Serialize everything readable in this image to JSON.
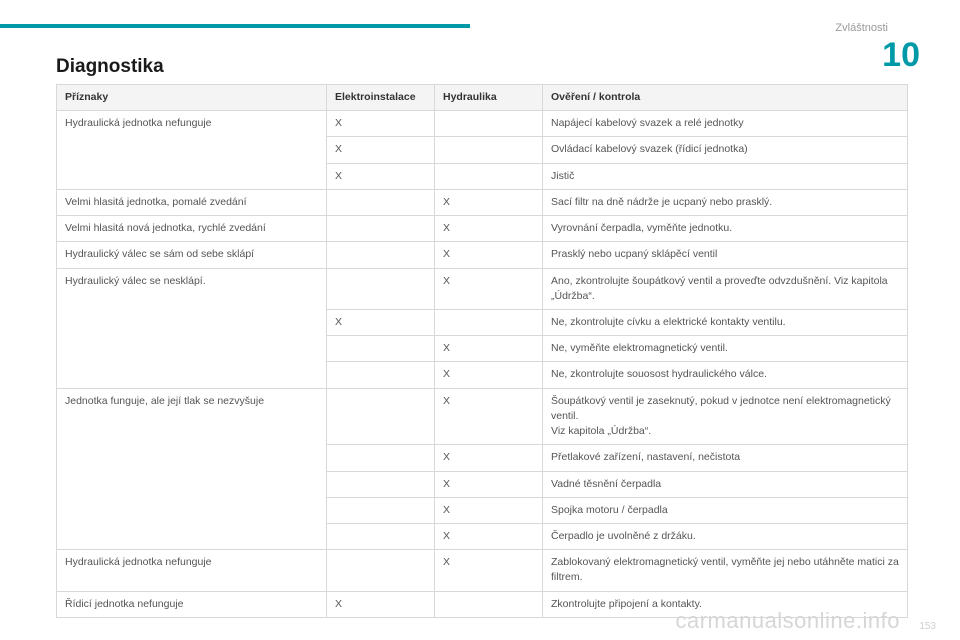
{
  "header": {
    "section_label": "Zvláštnosti",
    "chapter_number": "10"
  },
  "title": "Diagnostika",
  "table": {
    "columns": {
      "symptoms": "Příznaky",
      "electro": "Elektroinstalace",
      "hydraulics": "Hydraulika",
      "verify": "Ověření / kontrola"
    },
    "groups": [
      {
        "symptom": "Hydraulická jednotka nefunguje",
        "rows": [
          {
            "electro": "X",
            "hydraulics": "",
            "verify": "Napájecí kabelový svazek a relé jednotky"
          },
          {
            "electro": "X",
            "hydraulics": "",
            "verify": "Ovládací kabelový svazek (řídicí jednotka)"
          },
          {
            "electro": "X",
            "hydraulics": "",
            "verify": "Jistič"
          }
        ]
      },
      {
        "symptom": "Velmi hlasitá jednotka, pomalé zvedání",
        "rows": [
          {
            "electro": "",
            "hydraulics": "X",
            "verify": "Sací filtr na dně nádrže je ucpaný nebo prasklý."
          }
        ]
      },
      {
        "symptom": "Velmi hlasitá nová jednotka, rychlé zvedání",
        "rows": [
          {
            "electro": "",
            "hydraulics": "X",
            "verify": "Vyrovnání čerpadla, vyměňte jednotku."
          }
        ]
      },
      {
        "symptom": "Hydraulický válec se sám od sebe sklápí",
        "rows": [
          {
            "electro": "",
            "hydraulics": "X",
            "verify": "Prasklý nebo ucpaný sklápěcí ventil"
          }
        ]
      },
      {
        "symptom": "Hydraulický válec se nesklápí.",
        "rows": [
          {
            "electro": "",
            "hydraulics": "X",
            "verify": "Ano, zkontrolujte šoupátkový ventil a proveďte odvzdušnění. Viz kapitola „Údržba“."
          },
          {
            "electro": "X",
            "hydraulics": "",
            "verify": "Ne, zkontrolujte cívku a elektrické kontakty ventilu."
          },
          {
            "electro": "",
            "hydraulics": "X",
            "verify": "Ne, vyměňte elektromagnetický ventil."
          },
          {
            "electro": "",
            "hydraulics": "X",
            "verify": "Ne, zkontrolujte souosost hydraulického válce."
          }
        ]
      },
      {
        "symptom": "Jednotka funguje, ale její tlak se nezvyšuje",
        "rows": [
          {
            "electro": "",
            "hydraulics": "X",
            "verify": "Šoupátkový ventil je zaseknutý, pokud v jednotce není elektromagnetický ventil.\nViz kapitola „Údržba“."
          },
          {
            "electro": "",
            "hydraulics": "X",
            "verify": "Přetlakové zařízení, nastavení, nečistota"
          },
          {
            "electro": "",
            "hydraulics": "X",
            "verify": "Vadné těsnění čerpadla"
          },
          {
            "electro": "",
            "hydraulics": "X",
            "verify": "Spojka motoru / čerpadla"
          },
          {
            "electro": "",
            "hydraulics": "X",
            "verify": "Čerpadlo je uvolněné z držáku."
          }
        ]
      },
      {
        "symptom": "Hydraulická jednotka nefunguje",
        "rows": [
          {
            "electro": "",
            "hydraulics": "X",
            "verify": "Zablokovaný elektromagnetický ventil, vyměňte jej nebo utáhněte matici za filtrem."
          }
        ]
      },
      {
        "symptom": "Řídicí jednotka nefunguje",
        "rows": [
          {
            "electro": "X",
            "hydraulics": "",
            "verify": "Zkontrolujte připojení a kontakty."
          }
        ]
      }
    ]
  },
  "footer": {
    "watermark": "carmanualsonline.info",
    "page_number": "153"
  }
}
